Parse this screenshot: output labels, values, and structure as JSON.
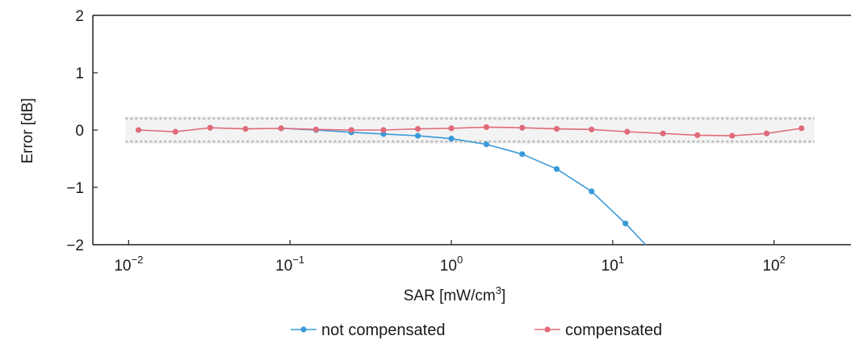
{
  "chart_data": {
    "type": "line",
    "title": "",
    "xlabel": "SAR [mW/cm",
    "xlabel_sup": "3",
    "xlabel_end": "]",
    "ylabel": "Error [dB]",
    "xscale": "log",
    "xlim": [
      0.006,
      300
    ],
    "ylim": [
      -2,
      2
    ],
    "grid": false,
    "legend_position": "bottom",
    "x_ticks": [
      {
        "base": "10",
        "exp": "−2",
        "value": 0.01
      },
      {
        "base": "10",
        "exp": "−1",
        "value": 0.1
      },
      {
        "base": "10",
        "exp": "0",
        "value": 1
      },
      {
        "base": "10",
        "exp": "1",
        "value": 10
      },
      {
        "base": "10",
        "exp": "2",
        "value": 100
      }
    ],
    "y_ticks": [
      {
        "label": "2",
        "value": 2
      },
      {
        "label": "1",
        "value": 1
      },
      {
        "label": "0",
        "value": 0
      },
      {
        "label": "−1",
        "value": -1
      },
      {
        "label": "−2",
        "value": -2
      }
    ],
    "tolerance_band": {
      "upper": 0.2,
      "lower": -0.2,
      "x_from": 0.01,
      "x_to": 170
    },
    "series": [
      {
        "name": "not compensated",
        "color": "#3a9ad9",
        "points": [
          {
            "x": 0.088,
            "y": 0.03
          },
          {
            "x": 0.145,
            "y": 0.0
          },
          {
            "x": 0.24,
            "y": -0.04
          },
          {
            "x": 0.38,
            "y": -0.07
          },
          {
            "x": 0.62,
            "y": -0.1
          },
          {
            "x": 1.0,
            "y": -0.15
          },
          {
            "x": 1.65,
            "y": -0.25
          },
          {
            "x": 2.75,
            "y": -0.42
          },
          {
            "x": 4.5,
            "y": -0.68
          },
          {
            "x": 7.4,
            "y": -1.07
          },
          {
            "x": 12.0,
            "y": -1.63
          }
        ],
        "line_end": {
          "x": 16.0,
          "y": -2.0
        }
      },
      {
        "name": "compensated",
        "color": "#e06a7a",
        "points": [
          {
            "x": 0.0115,
            "y": 0.0
          },
          {
            "x": 0.0195,
            "y": -0.03
          },
          {
            "x": 0.032,
            "y": 0.04
          },
          {
            "x": 0.053,
            "y": 0.02
          },
          {
            "x": 0.088,
            "y": 0.03
          },
          {
            "x": 0.145,
            "y": 0.01
          },
          {
            "x": 0.24,
            "y": 0.0
          },
          {
            "x": 0.38,
            "y": 0.0
          },
          {
            "x": 0.62,
            "y": 0.02
          },
          {
            "x": 1.0,
            "y": 0.03
          },
          {
            "x": 1.65,
            "y": 0.05
          },
          {
            "x": 2.75,
            "y": 0.04
          },
          {
            "x": 4.5,
            "y": 0.02
          },
          {
            "x": 7.4,
            "y": 0.01
          },
          {
            "x": 12.3,
            "y": -0.03
          },
          {
            "x": 20.5,
            "y": -0.06
          },
          {
            "x": 33.5,
            "y": -0.09
          },
          {
            "x": 55.0,
            "y": -0.1
          },
          {
            "x": 90.0,
            "y": -0.06
          },
          {
            "x": 148.0,
            "y": 0.03
          }
        ]
      }
    ]
  }
}
